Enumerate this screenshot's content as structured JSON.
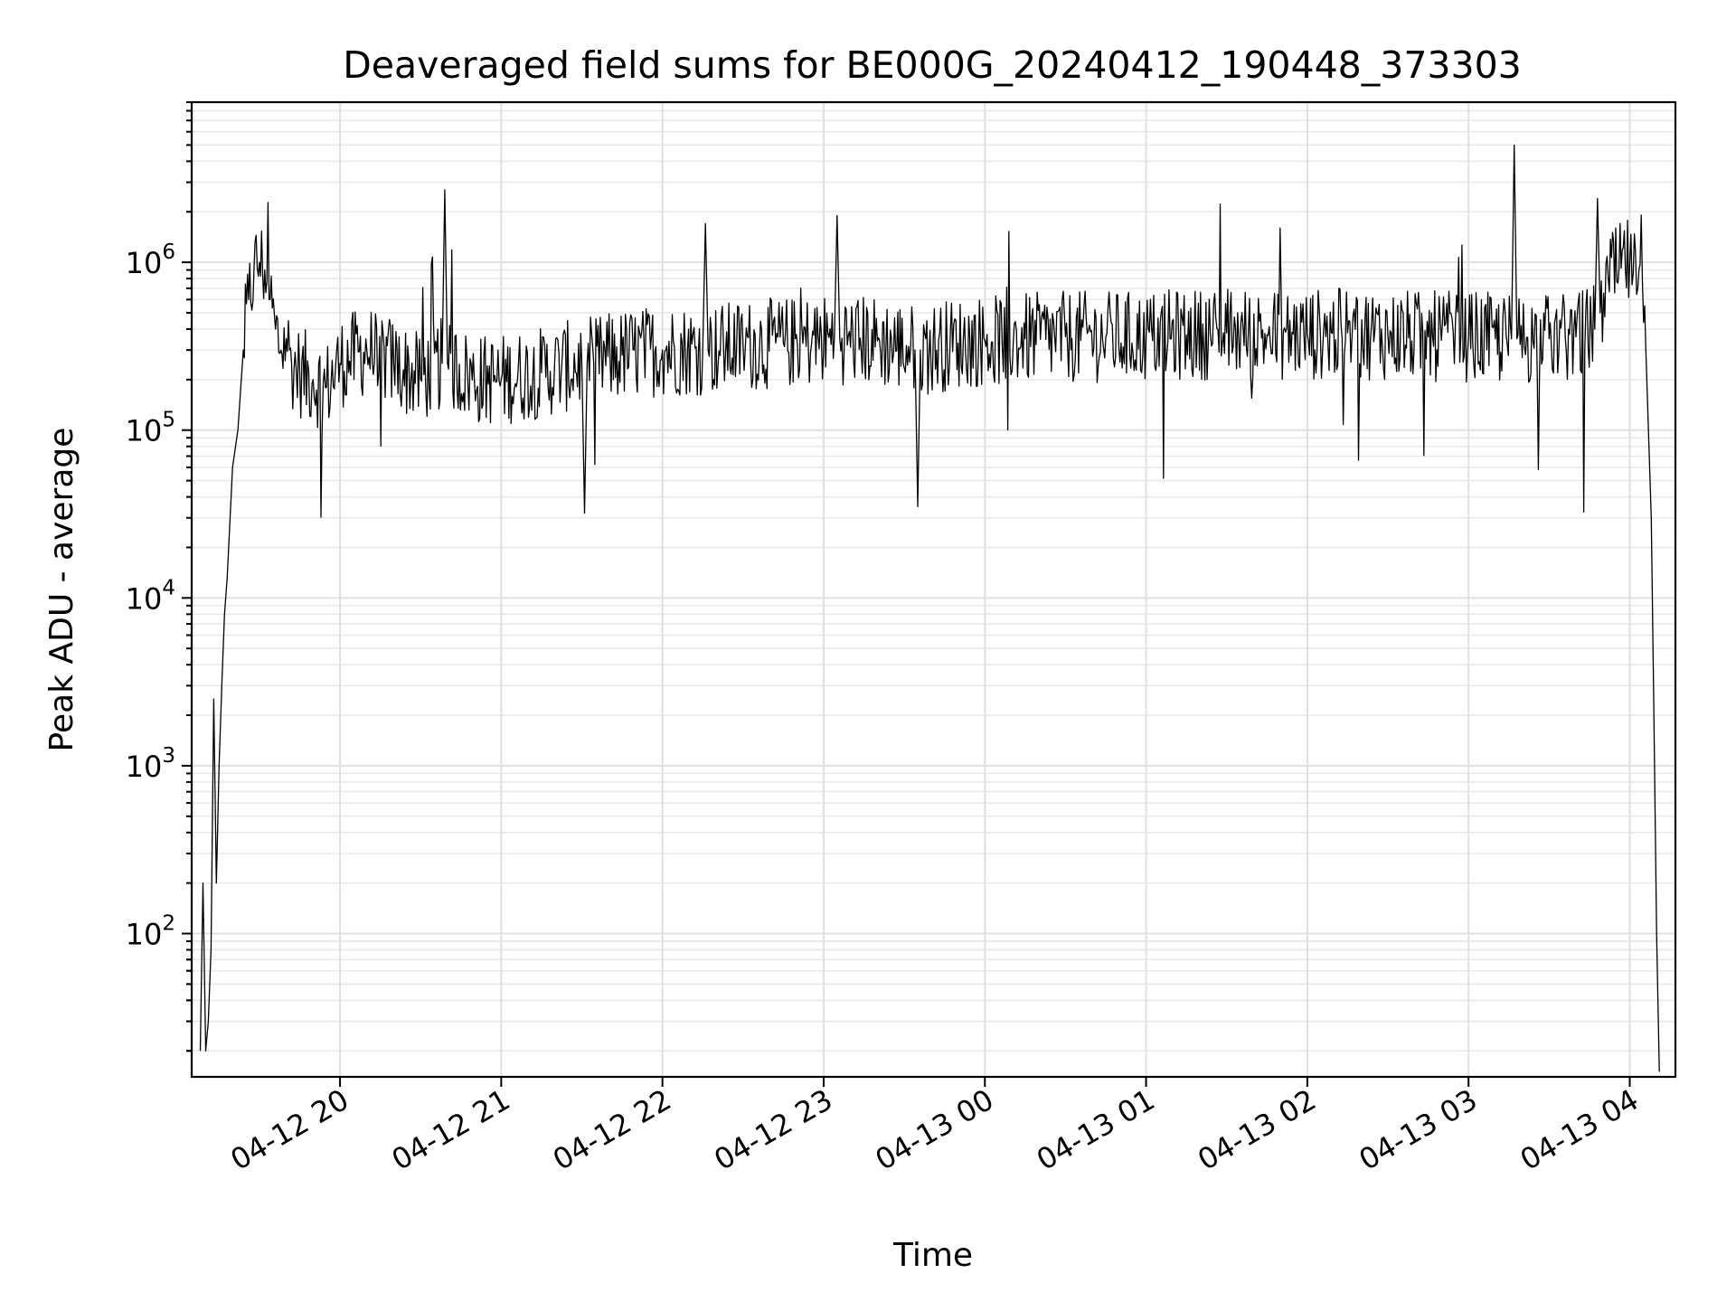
{
  "chart_data": {
    "type": "line",
    "title": "Deaveraged field sums for BE000G_20240412_190448_373303",
    "xlabel": "Time",
    "ylabel": "Peak ADU - average",
    "yscale": "log",
    "xlim": [
      "2024-04-12T19:04:48",
      "2024-04-13T04:17:00"
    ],
    "ylim": [
      14,
      9000000
    ],
    "grid": "on (major and minor)",
    "x_ticks": [
      {
        "value": "2024-04-12T20:00",
        "label": "04-12 20"
      },
      {
        "value": "2024-04-12T21:00",
        "label": "04-12 21"
      },
      {
        "value": "2024-04-12T22:00",
        "label": "04-12 22"
      },
      {
        "value": "2024-04-12T23:00",
        "label": "04-12 23"
      },
      {
        "value": "2024-04-13T00:00",
        "label": "04-13 00"
      },
      {
        "value": "2024-04-13T01:00",
        "label": "04-13 01"
      },
      {
        "value": "2024-04-13T02:00",
        "label": "04-13 02"
      },
      {
        "value": "2024-04-13T03:00",
        "label": "04-13 03"
      },
      {
        "value": "2024-04-13T04:00",
        "label": "04-13 04"
      }
    ],
    "y_ticks": [
      {
        "value": 100,
        "base": "10",
        "exp": "2"
      },
      {
        "value": 1000,
        "base": "10",
        "exp": "3"
      },
      {
        "value": 10000,
        "base": "10",
        "exp": "4"
      },
      {
        "value": 100000,
        "base": "10",
        "exp": "5"
      },
      {
        "value": 1000000,
        "base": "10",
        "exp": "6"
      }
    ],
    "series": [
      {
        "color": "#000000",
        "x": [
          "2024-04-12T19:08",
          "2024-04-12T19:09",
          "2024-04-12T19:10",
          "2024-04-12T19:11",
          "2024-04-12T19:12",
          "2024-04-12T19:13",
          "2024-04-12T19:14",
          "2024-04-12T19:15",
          "2024-04-12T19:16",
          "2024-04-12T19:17",
          "2024-04-12T19:18",
          "2024-04-12T19:20",
          "2024-04-12T19:22",
          "2024-04-12T19:24",
          "2024-04-12T19:26",
          "2024-04-12T19:28",
          "2024-04-12T19:30",
          "2024-04-12T19:32",
          "2024-04-12T19:34",
          "2024-04-12T19:36",
          "2024-04-12T19:38",
          "2024-04-12T19:40",
          "2024-04-12T19:42",
          "2024-04-12T19:45",
          "2024-04-12T19:50",
          "2024-04-12T19:55",
          "2024-04-12T20:00",
          "2024-04-12T20:10",
          "2024-04-12T20:20",
          "2024-04-12T20:30",
          "2024-04-12T20:38",
          "2024-04-12T20:39",
          "2024-04-12T20:40",
          "2024-04-12T20:50",
          "2024-04-12T21:00",
          "2024-04-12T21:15",
          "2024-04-12T21:30",
          "2024-04-12T21:31",
          "2024-04-12T21:32",
          "2024-04-12T21:45",
          "2024-04-12T22:00",
          "2024-04-12T22:15",
          "2024-04-12T22:16",
          "2024-04-12T22:17",
          "2024-04-12T22:30",
          "2024-04-12T22:45",
          "2024-04-12T23:04",
          "2024-04-12T23:05",
          "2024-04-12T23:06",
          "2024-04-12T23:20",
          "2024-04-12T23:34",
          "2024-04-12T23:35",
          "2024-04-12T23:36",
          "2024-04-12T23:50",
          "2024-04-13T00:00",
          "2024-04-13T00:15",
          "2024-04-13T00:30",
          "2024-04-13T00:45",
          "2024-04-13T01:00",
          "2024-04-13T01:15",
          "2024-04-13T01:30",
          "2024-04-13T01:45",
          "2024-04-13T02:00",
          "2024-04-13T02:15",
          "2024-04-13T02:30",
          "2024-04-13T02:45",
          "2024-04-13T03:00",
          "2024-04-13T03:10",
          "2024-04-13T03:16",
          "2024-04-13T03:17",
          "2024-04-13T03:18",
          "2024-04-13T03:30",
          "2024-04-13T03:40",
          "2024-04-13T03:47",
          "2024-04-13T03:48",
          "2024-04-13T03:49",
          "2024-04-13T03:52",
          "2024-04-13T03:56",
          "2024-04-13T04:00",
          "2024-04-13T04:03",
          "2024-04-13T04:06",
          "2024-04-13T04:08",
          "2024-04-13T04:09",
          "2024-04-13T04:10",
          "2024-04-13T04:11"
        ],
        "y": [
          20,
          200,
          20,
          30,
          80,
          2500,
          200,
          1000,
          3000,
          8000,
          13000,
          60000,
          100000,
          300000,
          600000,
          900000,
          1000000,
          900000,
          600000,
          400000,
          300000,
          350000,
          250000,
          220000,
          200000,
          180000,
          250000,
          300000,
          250000,
          200000,
          250000,
          2700000,
          250000,
          200000,
          200000,
          220000,
          250000,
          32000,
          250000,
          280000,
          300000,
          300000,
          1700000,
          300000,
          320000,
          330000,
          350000,
          1900000,
          350000,
          340000,
          300000,
          35000,
          300000,
          330000,
          340000,
          350000,
          360000,
          360000,
          360000,
          370000,
          380000,
          370000,
          370000,
          380000,
          370000,
          360000,
          360000,
          350000,
          350000,
          5000000,
          350000,
          350000,
          360000,
          400000,
          2400000,
          500000,
          800000,
          900000,
          1000000,
          700000,
          300000,
          30000,
          2000,
          100,
          15
        ]
      }
    ]
  }
}
